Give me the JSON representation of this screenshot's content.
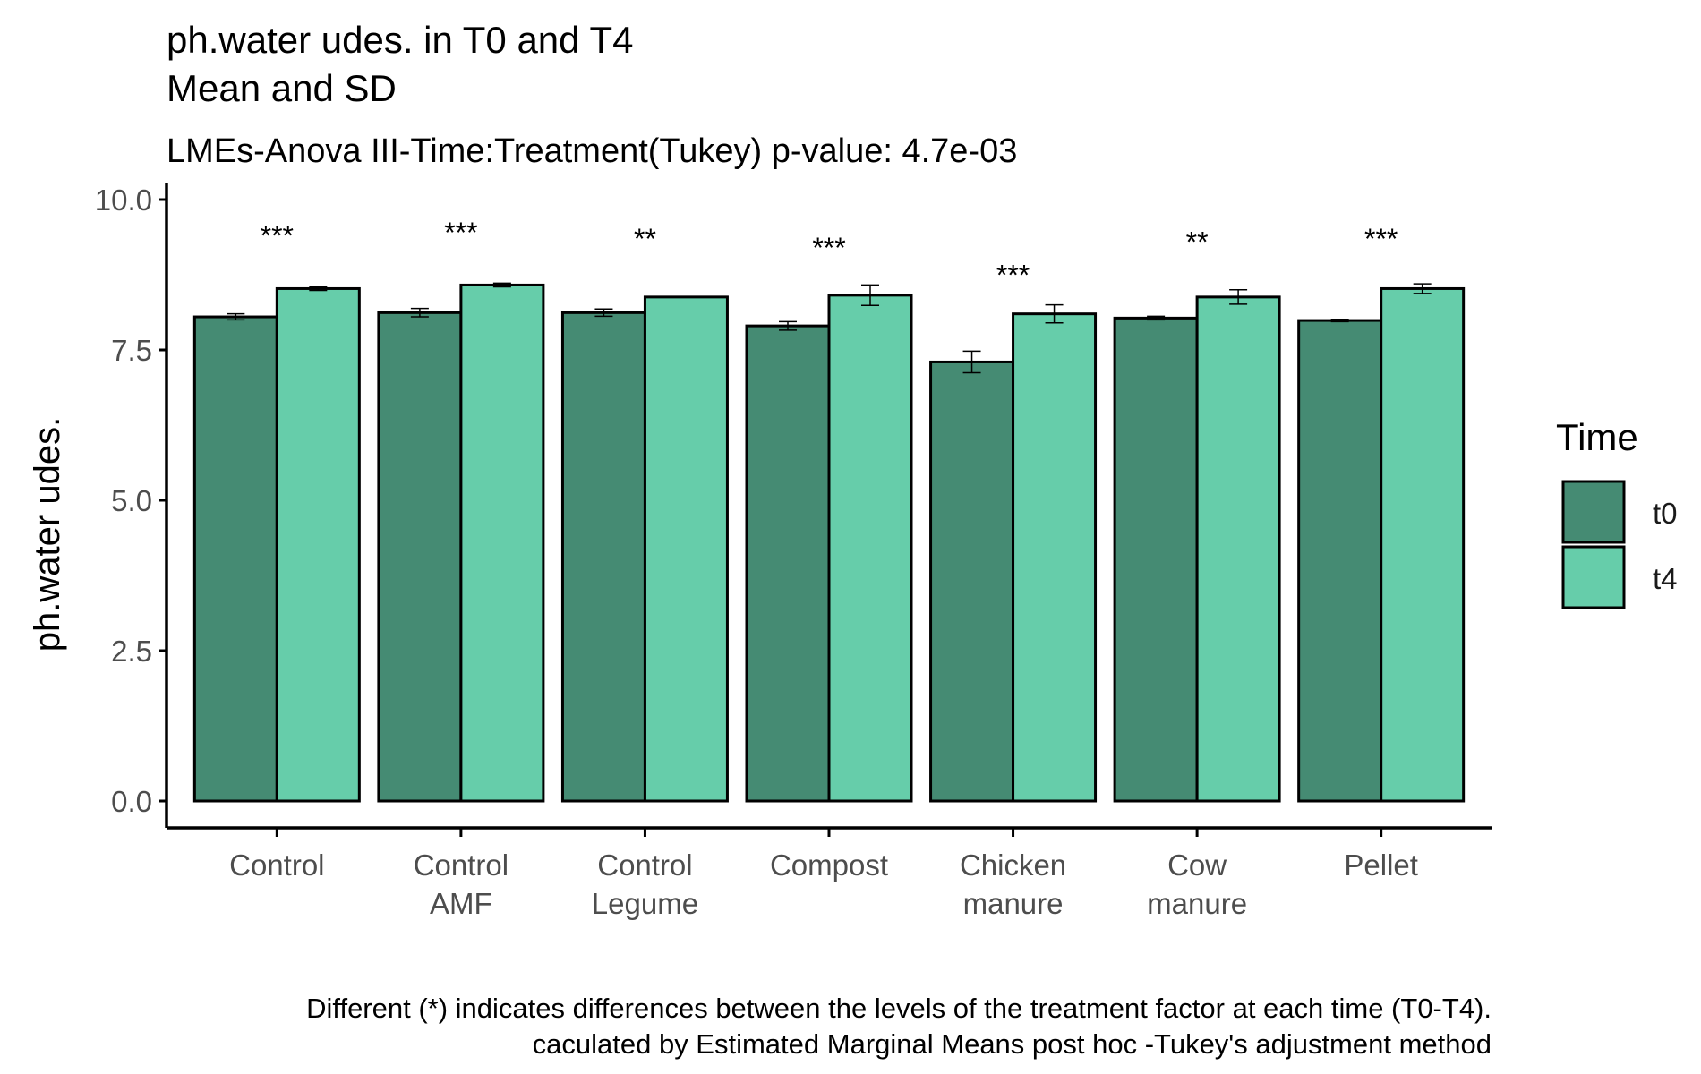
{
  "chart_data": {
    "type": "bar",
    "title_lines": [
      "ph.water udes. in T0 and T4",
      "Mean and SD"
    ],
    "subtitle": "LMEs-Anova III-Time:Treatment(Tukey) p-value: 4.7e-03",
    "xlabel": "",
    "ylabel": "ph.water udes.",
    "ylim": [
      0,
      10
    ],
    "yticks": [
      "0.0",
      "2.5",
      "5.0",
      "7.5",
      "10.0"
    ],
    "grid": false,
    "legend_position": "right",
    "legend_title": "Time",
    "categories": [
      [
        "Control"
      ],
      [
        "Control",
        "AMF"
      ],
      [
        "Control",
        "Legume"
      ],
      [
        "Compost"
      ],
      [
        "Chicken",
        "manure"
      ],
      [
        "Cow",
        "manure"
      ],
      [
        "Pellet"
      ]
    ],
    "series": [
      {
        "name": "t0",
        "color": "#458b73",
        "values": [
          8.05,
          8.12,
          8.12,
          7.9,
          7.3,
          8.03,
          7.99
        ],
        "sd": [
          0.05,
          0.07,
          0.06,
          0.07,
          0.18,
          0.03,
          0.02
        ]
      },
      {
        "name": "t4",
        "color": "#66cdaa",
        "values": [
          8.52,
          8.58,
          8.38,
          8.41,
          8.1,
          8.38,
          8.52
        ],
        "sd": [
          0.03,
          0.03,
          0.0,
          0.17,
          0.15,
          0.12,
          0.08
        ]
      }
    ],
    "significance": [
      "***",
      "***",
      "**",
      "***",
      "***",
      "**",
      "***"
    ],
    "significance_y": [
      9.5,
      9.55,
      9.45,
      9.3,
      8.85,
      9.4,
      9.45
    ],
    "caption_lines": [
      "Different (*) indicates differences between the levels of the treatment factor at each time (T0-T4).",
      "caculated by Estimated Marginal Means post hoc -Tukey's adjustment method"
    ]
  }
}
